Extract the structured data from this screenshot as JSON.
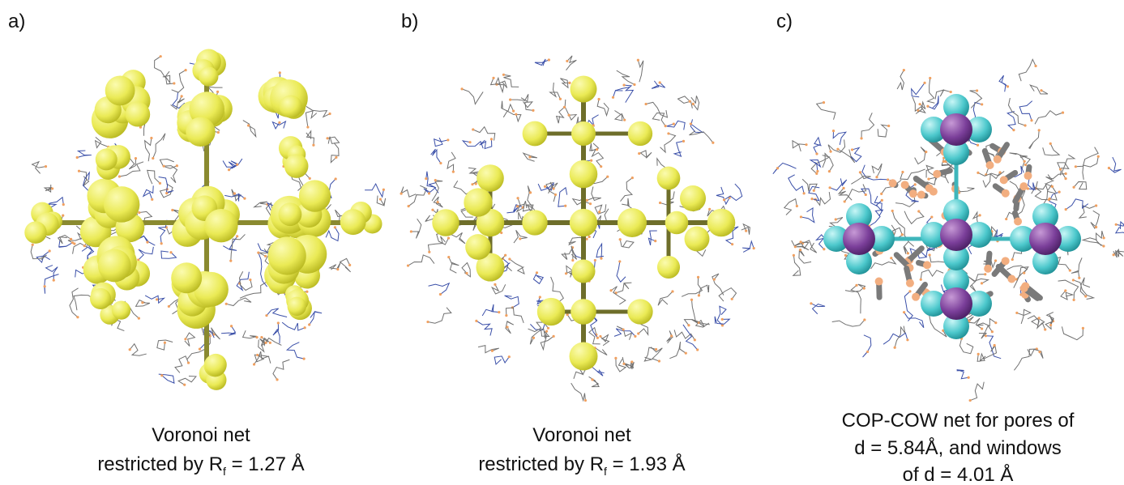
{
  "panels": [
    {
      "label": "a)",
      "caption": [
        {
          "text": "Voronoi net"
        },
        {
          "text": "restricted by R",
          "sub": "f",
          "rest": " = 1.27 Å"
        }
      ]
    },
    {
      "label": "b)",
      "caption": [
        {
          "text": "Voronoi net"
        },
        {
          "text": "restricted by R",
          "sub": "f",
          "rest": " = 1.93 Å"
        }
      ]
    },
    {
      "label": "c)",
      "caption": [
        {
          "text": "COP-COW net for pores of"
        },
        {
          "text": "d = 5.84Å, and windows"
        },
        {
          "text": "of d = 4.01 Å"
        }
      ]
    }
  ]
}
